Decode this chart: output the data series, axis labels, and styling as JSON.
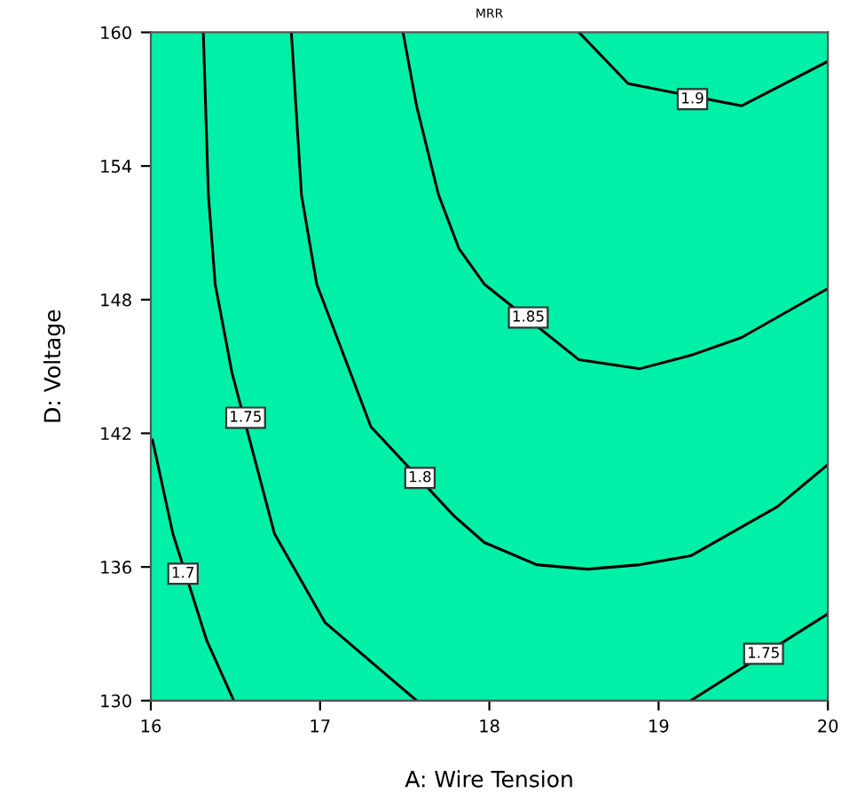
{
  "chart_data": {
    "type": "line",
    "title": "MRR",
    "xlabel": "A: Wire Tension",
    "ylabel": "D: Voltage",
    "xlim": [
      16,
      20
    ],
    "ylim": [
      130,
      160
    ],
    "xticks": [
      16,
      17,
      18,
      19,
      20
    ],
    "yticks": [
      130,
      136,
      142,
      148,
      154,
      160
    ],
    "grid": false,
    "marker": "none",
    "line_style": "solid",
    "series": [
      {
        "color": "#000000",
        "x": [
          16.01,
          16.13,
          16.33,
          16.49
        ],
        "values": [
          141.7,
          137.5,
          132.7,
          130.0
        ]
      },
      {
        "color": "#000000",
        "x": [
          16.31,
          16.34,
          16.38,
          16.48,
          16.73,
          17.03,
          17.57
        ],
        "values": [
          160,
          152.7,
          148.7,
          144.7,
          137.5,
          133.5,
          130.0
        ]
      },
      {
        "color": "#000000",
        "x": [
          16.83,
          16.89,
          16.98,
          17.14,
          17.3,
          17.79,
          17.97,
          18.28,
          18.58,
          18.89,
          19.19,
          19.7,
          20.0
        ],
        "values": [
          160,
          152.7,
          148.7,
          145.5,
          142.3,
          138.3,
          137.1,
          136.1,
          135.9,
          136.1,
          136.5,
          138.7,
          140.6
        ]
      },
      {
        "color": "#000000",
        "x": [
          17.49,
          17.57,
          17.7,
          17.82,
          17.97,
          18.53,
          18.89,
          19.19,
          19.49,
          20.0
        ],
        "values": [
          160,
          156.7,
          152.7,
          150.3,
          148.7,
          145.3,
          144.9,
          145.5,
          146.3,
          148.5
        ]
      },
      {
        "color": "#000000",
        "x": [
          18.53,
          18.82,
          19.49,
          20.0
        ],
        "values": [
          160,
          157.7,
          156.7,
          158.7
        ]
      },
      {
        "color": "#000000",
        "x": [
          19.19,
          20.0
        ],
        "values": [
          130.0,
          133.9
        ]
      }
    ],
    "annotations": [
      {
        "text": "1.7",
        "x": 16.19,
        "y": 135.7
      },
      {
        "text": "1.75",
        "x": 16.56,
        "y": 142.7
      },
      {
        "text": "1.8",
        "x": 17.59,
        "y": 140.0
      },
      {
        "text": "1.85",
        "x": 18.23,
        "y": 147.2
      },
      {
        "text": "1.9",
        "x": 19.2,
        "y": 157.0
      },
      {
        "text": "1.75",
        "x": 19.62,
        "y": 132.1
      }
    ]
  }
}
